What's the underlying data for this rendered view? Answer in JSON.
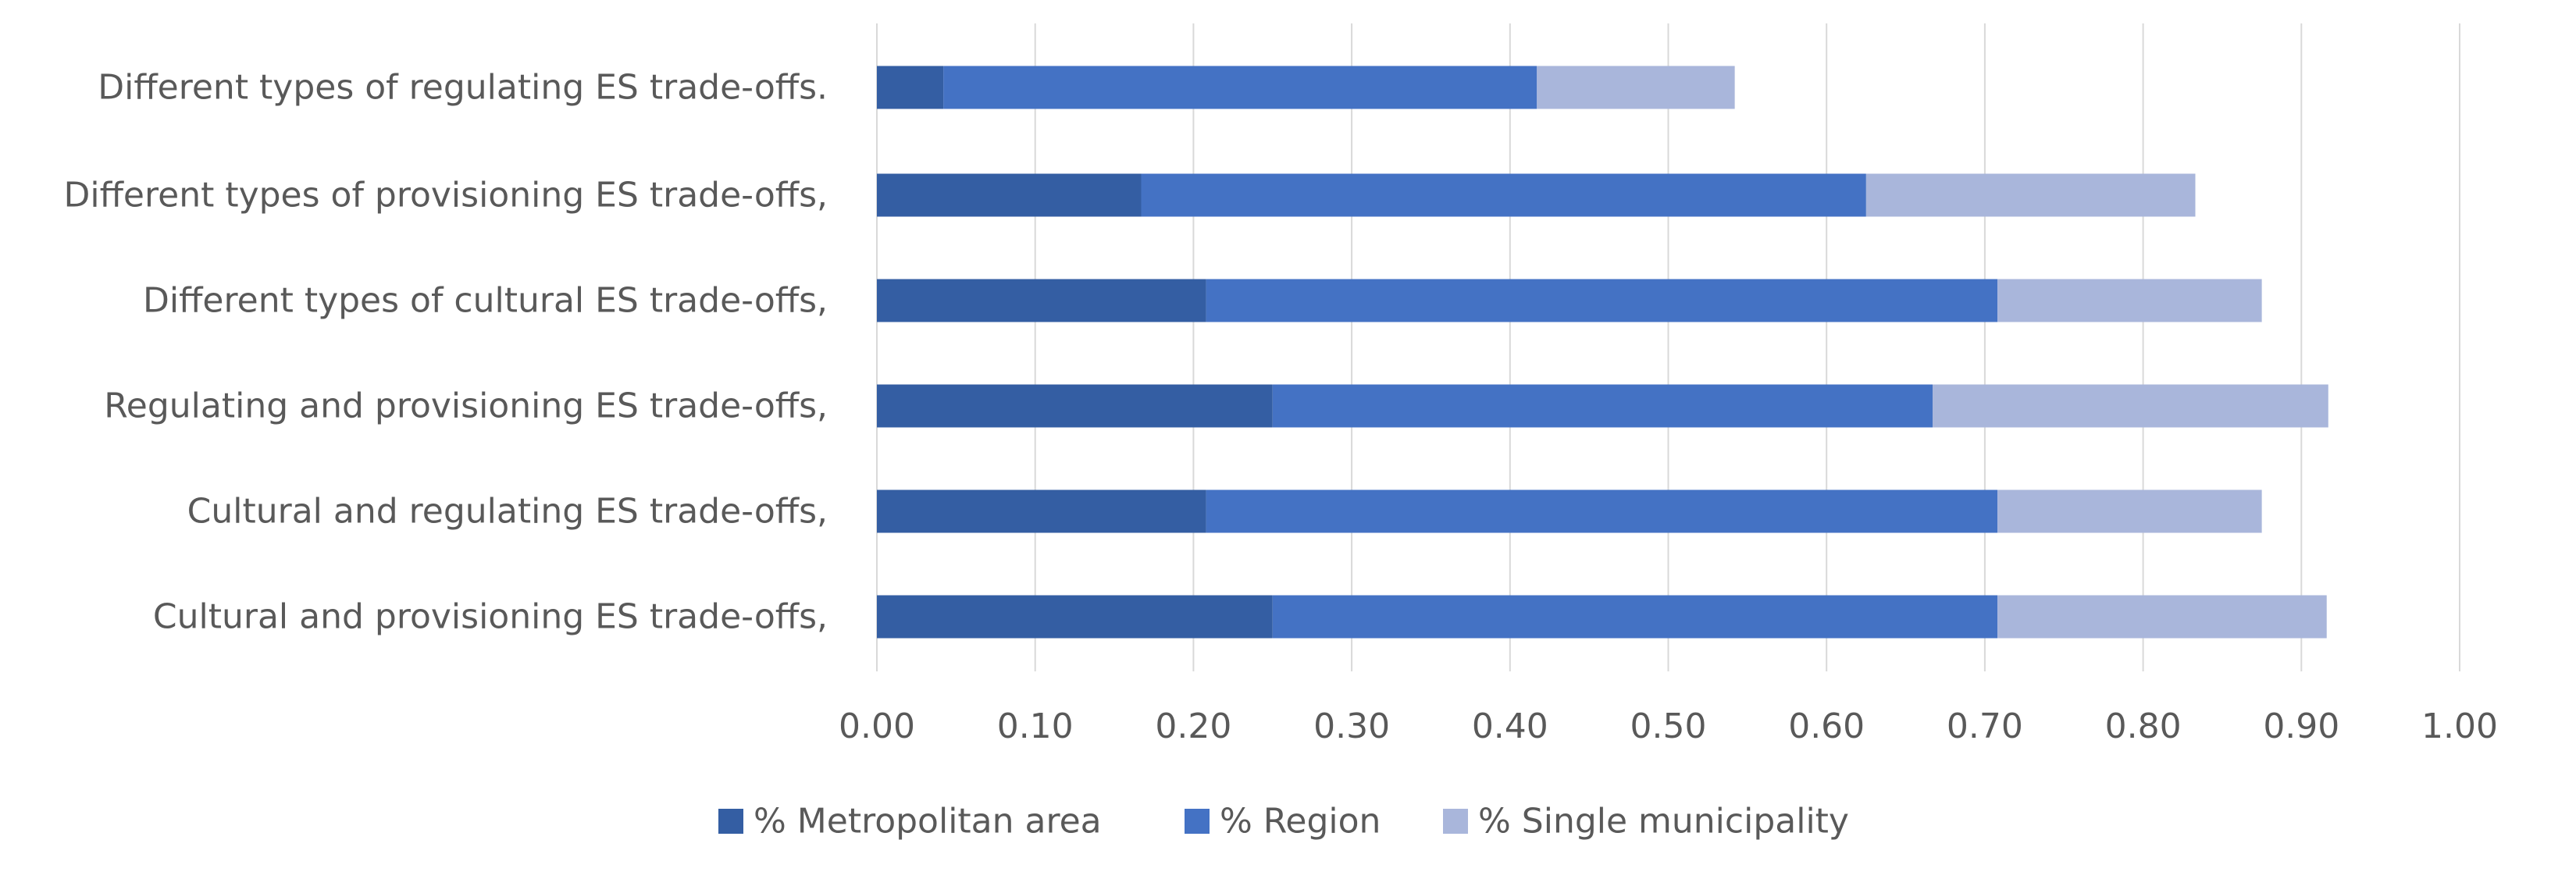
{
  "chart_data": {
    "type": "bar",
    "orientation": "horizontal",
    "stacked": true,
    "title": "",
    "xlabel": "",
    "ylabel": "",
    "xlim": [
      0,
      1
    ],
    "x_ticks": [
      "0.00",
      "0.10",
      "0.20",
      "0.30",
      "0.40",
      "0.50",
      "0.60",
      "0.70",
      "0.80",
      "0.90",
      "1.00"
    ],
    "grid": "vertical",
    "legend_position": "bottom",
    "categories": [
      "Different types of regulating ES trade-offs.",
      "Different types of provisioning ES trade-offs,",
      "Different types of cultural ES trade-offs,",
      "Regulating and provisioning ES trade-offs,",
      "Cultural and regulating ES trade-offs,",
      "Cultural and provisioning ES trade-offs,"
    ],
    "series": [
      {
        "name": "% Metropolitan area",
        "color": "#345ea3",
        "values": [
          0.042,
          0.167,
          0.208,
          0.25,
          0.208,
          0.25
        ]
      },
      {
        "name": "% Region",
        "color": "#4472c4",
        "values": [
          0.375,
          0.458,
          0.5,
          0.417,
          0.5,
          0.458
        ]
      },
      {
        "name": "% Single municipality",
        "color": "#a9b6db",
        "values": [
          0.125,
          0.208,
          0.167,
          0.25,
          0.167,
          0.208
        ]
      }
    ],
    "colors": {
      "gridline": "#d9d9d9",
      "text": "#595959"
    }
  }
}
